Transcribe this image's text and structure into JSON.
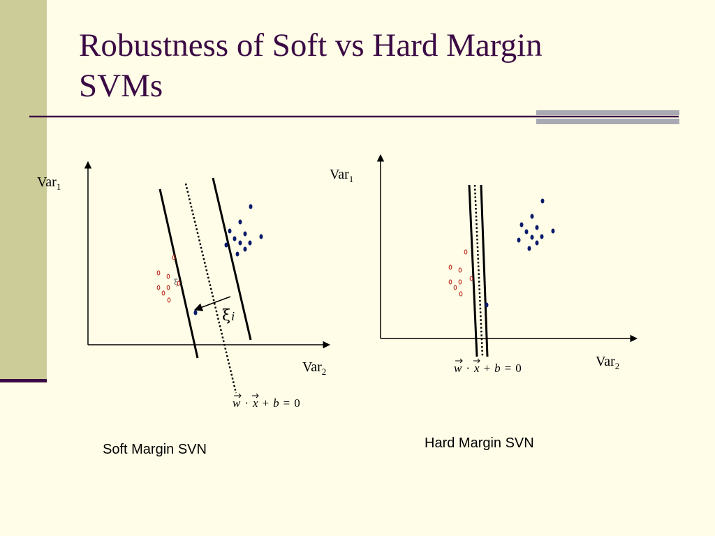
{
  "slide": {
    "title_line1": "Robustness of Soft vs Hard Margin",
    "title_line2": "SVMs",
    "colors": {
      "background": "#fffde7",
      "left_band": "#cccc99",
      "title": "#3b0a45",
      "rule": "#3b0a45",
      "rule_accent": "#a9a9b4",
      "positive_point": "#0a1a6b",
      "negative_point": "#c0392b"
    }
  },
  "soft_panel": {
    "caption": "Soft Margin SVN",
    "y_label": "Var",
    "y_label_sub": "1",
    "x_label": "Var",
    "x_label_sub": "2",
    "slack_label": "ξ",
    "slack_label_sub": "i",
    "small_slack_label": "ξ",
    "equation": {
      "w": "w",
      "dot": "·",
      "x": "x",
      "plus": "+",
      "b": "b",
      "equals": "=",
      "zero": "0"
    }
  },
  "hard_panel": {
    "caption": "Hard Margin SVN",
    "y_label": "Var",
    "y_label_sub": "1",
    "x_label": "Var",
    "x_label_sub": "2",
    "equation": {
      "w": "w",
      "dot": "·",
      "x": "x",
      "plus": "+",
      "b": "b",
      "equals": "=",
      "zero": "0"
    }
  }
}
